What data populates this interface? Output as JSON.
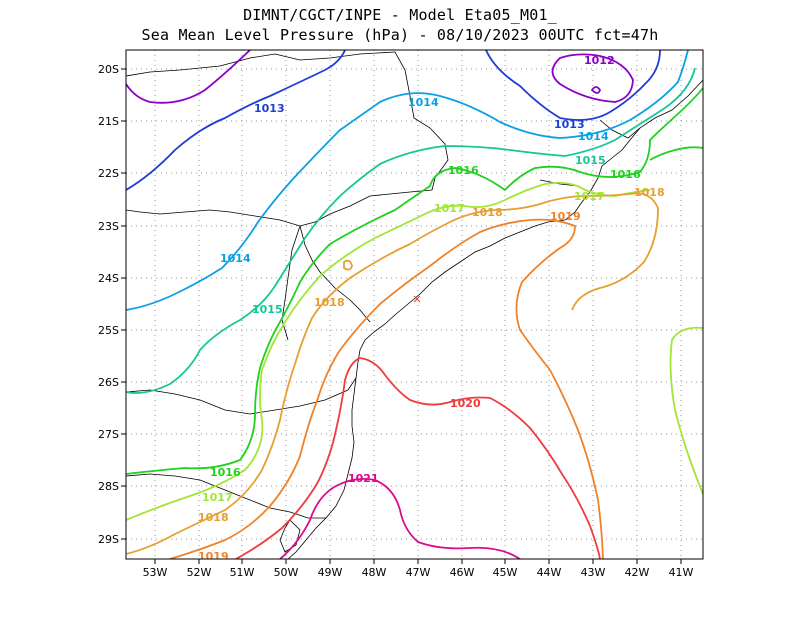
{
  "title_line1": "DIMNT/CGCT/INPE  -  Model Eta05_M01_",
  "title_line2": "Sea Mean Level Pressure (hPa) - 08/10/2023 00UTC fct=47h",
  "lon_ticks": [
    "53W",
    "52W",
    "51W",
    "50W",
    "49W",
    "48W",
    "47W",
    "46W",
    "45W",
    "44W",
    "43W",
    "42W",
    "41W"
  ],
  "lat_ticks": [
    "20S",
    "21S",
    "22S",
    "23S",
    "24S",
    "25S",
    "26S",
    "27S",
    "28S",
    "29S"
  ],
  "isobar_colors": {
    "1012": "#8a00c8",
    "1013": "#1e3cd8",
    "1014": "#0aa0e6",
    "1015": "#14c896",
    "1016": "#1ed21e",
    "1017": "#a0e632",
    "1018": "#e6a032",
    "1019": "#f08228",
    "1020": "#f03c3c",
    "1021": "#dc0a8c"
  },
  "isobar_labels": [
    {
      "text": "1012",
      "level": "1012"
    },
    {
      "text": "1013",
      "level": "1013"
    },
    {
      "text": "1013",
      "level": "1013"
    },
    {
      "text": "1014",
      "level": "1014"
    },
    {
      "text": "1014",
      "level": "1014"
    },
    {
      "text": "1014",
      "level": "1014"
    },
    {
      "text": "1015",
      "level": "1015"
    },
    {
      "text": "1015",
      "level": "1015"
    },
    {
      "text": "1016",
      "level": "1016"
    },
    {
      "text": "1016",
      "level": "1016"
    },
    {
      "text": "1016",
      "level": "1016"
    },
    {
      "text": "1017",
      "level": "1017"
    },
    {
      "text": "1017",
      "level": "1017"
    },
    {
      "text": "1017",
      "level": "1017"
    },
    {
      "text": "1018",
      "level": "1018"
    },
    {
      "text": "1018",
      "level": "1018"
    },
    {
      "text": "1018",
      "level": "1018"
    },
    {
      "text": "1018",
      "level": "1018"
    },
    {
      "text": "1019",
      "level": "1019"
    },
    {
      "text": "1019",
      "level": "1019"
    },
    {
      "text": "1020",
      "level": "1020"
    },
    {
      "text": "1021",
      "level": "1021"
    }
  ],
  "grid": true
}
